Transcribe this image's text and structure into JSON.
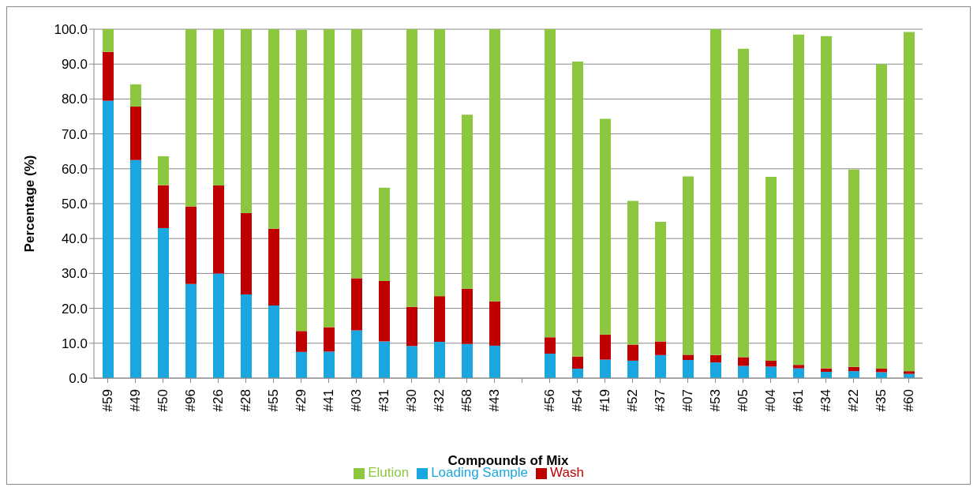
{
  "chart_data": {
    "type": "bar",
    "stacked": true,
    "xlabel": "Compounds of Mix",
    "ylabel": "Percentage (%)",
    "categories": [
      "#59",
      "#49",
      "#50",
      "#96",
      "#26",
      "#28",
      "#55",
      "#29",
      "#41",
      "#03",
      "#31",
      "#30",
      "#32",
      "#58",
      "#43",
      null,
      "#56",
      "#54",
      "#19",
      "#52",
      "#37",
      "#07",
      "#53",
      "#05",
      "#04",
      "#61",
      "#34",
      "#22",
      "#35",
      "#60"
    ],
    "series": [
      {
        "name": "Loading Sample",
        "color": "#1aa7e0",
        "values": [
          79.5,
          62.5,
          43,
          27,
          30,
          24,
          20.8,
          7.5,
          7.6,
          13.7,
          10.5,
          9.2,
          10.4,
          9.8,
          9.3,
          null,
          7,
          2.7,
          5.3,
          5,
          6.6,
          5.2,
          4.5,
          3.5,
          3.3,
          2.8,
          1.8,
          2,
          1.7,
          1.2
        ]
      },
      {
        "name": "Wash",
        "color": "#c00000",
        "values": [
          14,
          15.3,
          12.3,
          22.2,
          25.2,
          23.3,
          22,
          6,
          7,
          14.9,
          17.3,
          11.2,
          13.1,
          15.8,
          12.7,
          null,
          4.7,
          3.5,
          7.2,
          4.6,
          3.9,
          1.5,
          2.1,
          2.5,
          1.7,
          1,
          1,
          1.2,
          1,
          0.8
        ]
      },
      {
        "name": "Elution",
        "color": "#8dc63f",
        "values": [
          6.5,
          6.4,
          8.3,
          50.8,
          44.8,
          52.7,
          57.2,
          86.3,
          85.4,
          71.4,
          26.8,
          79.6,
          76.5,
          49.9,
          78,
          null,
          88.3,
          84.5,
          61.8,
          41.2,
          34.3,
          51.1,
          93.4,
          88.4,
          52.7,
          94.7,
          95.2,
          56.6,
          87.3,
          97.2
        ]
      }
    ],
    "ylim": [
      0,
      100
    ],
    "yticks": [
      {
        "value": 0,
        "label": "0.0"
      },
      {
        "value": 10,
        "label": "10.0"
      },
      {
        "value": 20,
        "label": "20.0"
      },
      {
        "value": 30,
        "label": "30.0"
      },
      {
        "value": 40,
        "label": "40.0"
      },
      {
        "value": 50,
        "label": "50.0"
      },
      {
        "value": 60,
        "label": "60.0"
      },
      {
        "value": 70,
        "label": "70.0"
      },
      {
        "value": 80,
        "label": "80.0"
      },
      {
        "value": 90,
        "label": "90.0"
      },
      {
        "value": 100,
        "label": "100.0"
      }
    ],
    "grid": "y",
    "legend": "bottom"
  }
}
